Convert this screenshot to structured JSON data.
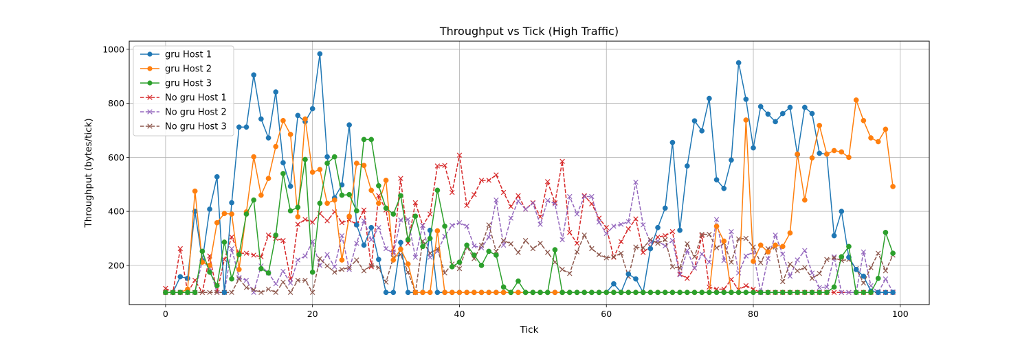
{
  "chart_data": {
    "type": "line",
    "title": "Throughput vs Tick (High Traffic)",
    "xlabel": "Tick",
    "ylabel": "Throughput (bytes/tick)",
    "xlim": [
      -4.95,
      103.95
    ],
    "ylim": [
      55,
      1030
    ],
    "xticks": [
      0,
      20,
      40,
      60,
      80,
      100
    ],
    "yticks": [
      200,
      400,
      600,
      800,
      1000
    ],
    "grid": true,
    "legend_position": "top-left",
    "x_start": 0,
    "series": [
      {
        "name": "gru Host 1",
        "color": "#1f77b4",
        "style": "solid",
        "marker": "circle",
        "values": [
          100,
          100,
          158,
          152,
          400,
          218,
          408,
          528,
          100,
          432,
          712,
          712,
          905,
          742,
          672,
          842,
          580,
          493,
          755,
          732,
          780,
          983,
          602,
          450,
          498,
          720,
          350,
          275,
          340,
          222,
          100,
          100,
          285,
          100,
          100,
          100,
          330,
          100,
          100,
          100,
          100,
          100,
          100,
          100,
          100,
          100,
          100,
          100,
          100,
          100,
          100,
          100,
          100,
          100,
          100,
          100,
          100,
          100,
          100,
          100,
          100,
          132,
          100,
          168,
          150,
          100,
          262,
          340,
          412,
          655,
          330,
          568,
          735,
          698,
          818,
          517,
          485,
          590,
          950,
          815,
          635,
          788,
          760,
          732,
          762,
          785,
          610,
          785,
          762,
          615,
          612,
          310,
          400,
          230,
          185,
          160,
          105,
          100,
          100,
          100
        ]
      },
      {
        "name": "gru Host 2",
        "color": "#ff7f0e",
        "style": "solid",
        "marker": "circle",
        "values": [
          100,
          100,
          100,
          112,
          475,
          212,
          200,
          358,
          392,
          390,
          185,
          398,
          602,
          460,
          522,
          640,
          736,
          685,
          380,
          742,
          545,
          555,
          430,
          442,
          220,
          382,
          578,
          570,
          478,
          430,
          515,
          220,
          260,
          205,
          100,
          100,
          100,
          328,
          100,
          100,
          100,
          100,
          100,
          100,
          100,
          100,
          100,
          100,
          100,
          100,
          100,
          100,
          100,
          100,
          100,
          100,
          100,
          100,
          100,
          100,
          100,
          100,
          100,
          100,
          100,
          100,
          100,
          100,
          100,
          100,
          100,
          100,
          100,
          100,
          100,
          345,
          290,
          100,
          100,
          738,
          215,
          275,
          250,
          275,
          270,
          320,
          612,
          442,
          598,
          718,
          612,
          625,
          620,
          600,
          812,
          736,
          672,
          658,
          704,
          492
        ]
      },
      {
        "name": "gru Host 3",
        "color": "#2ca02c",
        "style": "solid",
        "marker": "circle",
        "values": [
          100,
          100,
          100,
          100,
          100,
          252,
          175,
          125,
          286,
          150,
          240,
          390,
          442,
          188,
          172,
          312,
          540,
          402,
          415,
          592,
          175,
          430,
          578,
          602,
          460,
          462,
          402,
          666,
          666,
          495,
          412,
          390,
          458,
          295,
          382,
          270,
          300,
          478,
          345,
          195,
          212,
          275,
          238,
          200,
          252,
          238,
          120,
          100,
          142,
          100,
          100,
          100,
          100,
          258,
          100,
          100,
          100,
          100,
          100,
          100,
          100,
          100,
          100,
          100,
          100,
          100,
          100,
          100,
          100,
          100,
          100,
          100,
          100,
          100,
          100,
          100,
          100,
          100,
          100,
          100,
          100,
          100,
          100,
          100,
          100,
          100,
          100,
          100,
          100,
          100,
          100,
          120,
          232,
          270,
          100,
          100,
          100,
          152,
          322,
          245
        ]
      },
      {
        "name": "No gru Host 1",
        "color": "#d62728",
        "style": "dashed",
        "marker": "x",
        "values": [
          115,
          100,
          262,
          100,
          145,
          100,
          235,
          100,
          222,
          305,
          245,
          245,
          238,
          232,
          312,
          300,
          292,
          150,
          352,
          370,
          360,
          392,
          365,
          398,
          358,
          368,
          352,
          405,
          195,
          458,
          405,
          250,
          522,
          282,
          432,
          348,
          390,
          568,
          570,
          470,
          608,
          422,
          462,
          515,
          515,
          535,
          470,
          418,
          458,
          408,
          432,
          380,
          510,
          432,
          585,
          322,
          282,
          458,
          428,
          375,
          340,
          230,
          288,
          335,
          372,
          248,
          270,
          305,
          310,
          325,
          168,
          152,
          190,
          310,
          120,
          112,
          112,
          148,
          110,
          125,
          112,
          100,
          100,
          100,
          100,
          100,
          100,
          100,
          100,
          100,
          100,
          100,
          100,
          100,
          100,
          100,
          100,
          100,
          100,
          100
        ]
      },
      {
        "name": "No gru Host 2",
        "color": "#9467bd",
        "style": "dashed",
        "marker": "x",
        "values": [
          100,
          100,
          100,
          100,
          100,
          218,
          190,
          100,
          100,
          262,
          155,
          145,
          100,
          198,
          172,
          132,
          178,
          135,
          220,
          235,
          288,
          200,
          240,
          195,
          310,
          185,
          282,
          365,
          295,
          340,
          262,
          245,
          368,
          370,
          230,
          348,
          230,
          252,
          308,
          348,
          358,
          345,
          272,
          265,
          305,
          442,
          275,
          375,
          438,
          408,
          430,
          352,
          440,
          428,
          295,
          455,
          390,
          455,
          455,
          360,
          318,
          345,
          352,
          362,
          508,
          350,
          285,
          290,
          272,
          292,
          165,
          255,
          190,
          242,
          212,
          370,
          218,
          325,
          172,
          235,
          250,
          100,
          225,
          312,
          242,
          160,
          220,
          255,
          172,
          118,
          120,
          232,
          100,
          100,
          100,
          250,
          125,
          100,
          150,
          102
        ]
      },
      {
        "name": "No gru Host 3",
        "color": "#8c564b",
        "style": "dashed",
        "marker": "x",
        "values": [
          100,
          100,
          100,
          100,
          100,
          100,
          100,
          100,
          100,
          100,
          150,
          118,
          110,
          100,
          112,
          100,
          138,
          100,
          145,
          145,
          100,
          225,
          198,
          175,
          185,
          192,
          220,
          180,
          200,
          192,
          138,
          228,
          240,
          175,
          100,
          290,
          245,
          262,
          172,
          205,
          188,
          270,
          225,
          275,
          350,
          252,
          292,
          280,
          248,
          292,
          262,
          282,
          248,
          212,
          185,
          170,
          250,
          312,
          262,
          240,
          228,
          232,
          245,
          158,
          268,
          265,
          295,
          282,
          295,
          195,
          190,
          280,
          232,
          315,
          315,
          265,
          282,
          212,
          298,
          300,
          268,
          210,
          262,
          268,
          140,
          205,
          180,
          192,
          152,
          170,
          222,
          228,
          218,
          222,
          188,
          135,
          192,
          245,
          180,
          238
        ]
      }
    ]
  }
}
